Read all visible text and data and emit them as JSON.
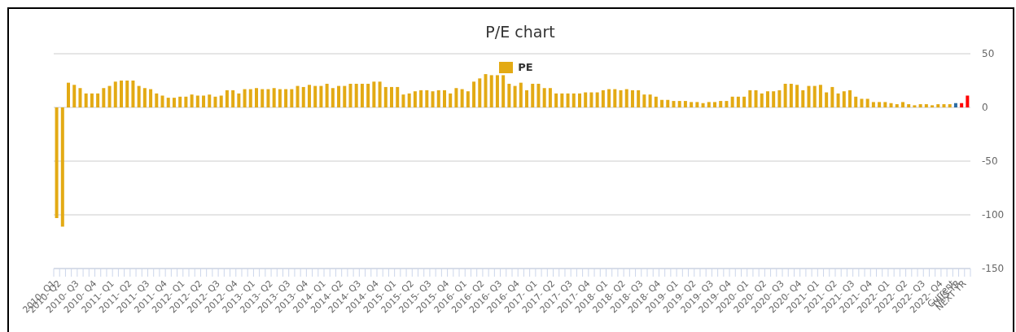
{
  "chart_data": {
    "type": "bar",
    "title": "P/E chart",
    "categories": [
      "2010- Q1",
      "2010- Q2",
      null,
      null,
      "2010- Q3",
      null,
      null,
      "2010- Q4",
      null,
      null,
      "2011- Q1",
      null,
      null,
      "2011- Q2",
      null,
      null,
      "2011- Q3",
      null,
      null,
      "2011- Q4",
      null,
      null,
      "2012- Q1",
      null,
      null,
      "2012- Q2",
      null,
      null,
      "2012- Q3",
      null,
      null,
      "2012- Q4",
      null,
      null,
      "2013- Q1",
      null,
      null,
      "2013- Q2",
      null,
      null,
      "2013- Q3",
      null,
      null,
      "2013- Q4",
      null,
      null,
      "2014- Q1",
      null,
      null,
      "2014- Q2",
      null,
      null,
      "2014- Q3",
      null,
      null,
      "2014- Q4",
      null,
      null,
      "2015- Q1",
      null,
      null,
      "2015- Q2",
      null,
      null,
      "2015- Q3",
      null,
      null,
      "2015- Q4",
      null,
      null,
      "2016- Q1",
      null,
      null,
      "2016- Q2",
      null,
      null,
      "2016- Q3",
      null,
      null,
      "2016- Q4",
      null,
      null,
      "2017- Q1",
      null,
      null,
      "2017- Q2",
      null,
      null,
      "2017- Q3",
      null,
      null,
      "2017- Q4",
      null,
      null,
      "2018- Q1",
      null,
      null,
      "2018- Q2",
      null,
      null,
      "2018- Q3",
      null,
      null,
      "2018- Q4",
      null,
      null,
      "2019- Q1",
      null,
      null,
      "2019- Q2",
      null,
      null,
      "2019- Q3",
      null,
      null,
      "2019- Q4",
      null,
      null,
      "2020- Q1",
      null,
      null,
      "2020- Q2",
      null,
      null,
      "2020- Q3",
      null,
      null,
      "2020- Q4",
      null,
      null,
      "2021- Q1",
      null,
      null,
      "2021- Q2",
      null,
      null,
      "2021- Q3",
      null,
      null,
      "2021- Q4",
      null,
      null,
      "2022- Q1",
      null,
      null,
      "2022- Q2",
      null,
      null,
      "2022- Q3",
      null,
      null,
      "2022- Q4",
      null,
      "Current",
      "THIS YR",
      "NEXT YR"
    ],
    "series": [
      {
        "name": "PE",
        "color": "#e3aa14",
        "colors": [
          "#e3aa14",
          "#e3aa14",
          "#e3aa14",
          "#e3aa14",
          "#e3aa14",
          "#e3aa14",
          "#e3aa14",
          "#e3aa14",
          "#e3aa14",
          "#e3aa14",
          "#e3aa14",
          "#e3aa14",
          "#e3aa14",
          "#e3aa14",
          "#e3aa14",
          "#e3aa14",
          "#e3aa14",
          "#e3aa14",
          "#e3aa14",
          "#e3aa14",
          "#e3aa14",
          "#e3aa14",
          "#e3aa14",
          "#e3aa14",
          "#e3aa14",
          "#e3aa14",
          "#e3aa14",
          "#e3aa14",
          "#e3aa14",
          "#e3aa14",
          "#e3aa14",
          "#e3aa14",
          "#e3aa14",
          "#e3aa14",
          "#e3aa14",
          "#e3aa14",
          "#e3aa14",
          "#e3aa14",
          "#e3aa14",
          "#e3aa14",
          "#e3aa14",
          "#e3aa14",
          "#e3aa14",
          "#e3aa14",
          "#e3aa14",
          "#e3aa14",
          "#e3aa14",
          "#e3aa14",
          "#e3aa14",
          "#e3aa14",
          "#e3aa14",
          "#e3aa14",
          "#e3aa14",
          "#e3aa14",
          "#e3aa14",
          "#e3aa14",
          "#e3aa14",
          "#e3aa14",
          "#e3aa14",
          "#e3aa14",
          "#e3aa14",
          "#e3aa14",
          "#e3aa14",
          "#e3aa14",
          "#e3aa14",
          "#e3aa14",
          "#e3aa14",
          "#e3aa14",
          "#e3aa14",
          "#e3aa14",
          "#e3aa14",
          "#e3aa14",
          "#e3aa14",
          "#e3aa14",
          "#e3aa14",
          "#e3aa14",
          "#e3aa14",
          "#e3aa14",
          "#e3aa14",
          "#e3aa14",
          "#e3aa14",
          "#e3aa14",
          "#e3aa14",
          "#e3aa14",
          "#e3aa14",
          "#e3aa14",
          "#e3aa14",
          "#e3aa14",
          "#e3aa14",
          "#e3aa14",
          "#e3aa14",
          "#e3aa14",
          "#e3aa14",
          "#e3aa14",
          "#e3aa14",
          "#e3aa14",
          "#e3aa14",
          "#e3aa14",
          "#e3aa14",
          "#e3aa14",
          "#e3aa14",
          "#e3aa14",
          "#e3aa14",
          "#e3aa14",
          "#e3aa14",
          "#e3aa14",
          "#e3aa14",
          "#e3aa14",
          "#e3aa14",
          "#e3aa14",
          "#e3aa14",
          "#e3aa14",
          "#e3aa14",
          "#e3aa14",
          "#e3aa14",
          "#e3aa14",
          "#e3aa14",
          "#e3aa14",
          "#e3aa14",
          "#e3aa14",
          "#e3aa14",
          "#e3aa14",
          "#e3aa14",
          "#e3aa14",
          "#e3aa14",
          "#e3aa14",
          "#e3aa14",
          "#e3aa14",
          "#e3aa14",
          "#e3aa14",
          "#e3aa14",
          "#e3aa14",
          "#e3aa14",
          "#e3aa14",
          "#e3aa14",
          "#e3aa14",
          "#e3aa14",
          "#e3aa14",
          "#e3aa14",
          "#e3aa14",
          "#e3aa14",
          "#e3aa14",
          "#e3aa14",
          "#e3aa14",
          "#e3aa14",
          "#e3aa14",
          "#e3aa14",
          "#e3aa14",
          "#e3aa14",
          "#e3aa14",
          "#e3aa14",
          "#e3aa14",
          "#e3aa14",
          "#2b6ca3",
          "#ff0000",
          "#ff0000"
        ],
        "values": [
          -103,
          -111,
          23,
          21,
          18,
          13,
          13,
          13,
          18,
          20,
          24,
          25,
          25,
          25,
          20,
          18,
          17,
          13,
          11,
          9,
          9,
          10,
          10,
          12,
          11,
          11,
          12,
          10,
          11,
          16,
          16,
          13,
          17,
          17,
          18,
          17,
          17,
          18,
          17,
          17,
          17,
          20,
          19,
          21,
          20,
          20,
          22,
          18,
          20,
          20,
          22,
          22,
          22,
          22,
          24,
          24,
          19,
          19,
          19,
          12,
          13,
          15,
          16,
          16,
          15,
          16,
          16,
          13,
          18,
          17,
          15,
          24,
          27,
          31,
          30,
          30,
          30,
          22,
          20,
          23,
          16,
          22,
          22,
          18,
          18,
          13,
          13,
          13,
          13,
          13,
          14,
          14,
          14,
          16,
          17,
          17,
          16,
          17,
          16,
          16,
          12,
          12,
          10,
          7,
          7,
          6,
          6,
          6,
          5,
          5,
          4,
          5,
          5,
          6,
          6,
          10,
          10,
          10,
          16,
          16,
          13,
          15,
          15,
          16,
          22,
          22,
          21,
          16,
          20,
          20,
          21,
          14,
          19,
          13,
          15,
          16,
          10,
          8,
          8,
          5,
          5,
          5,
          4,
          3,
          5,
          3,
          2,
          3,
          3,
          2,
          3,
          3,
          3,
          4,
          4,
          11
        ]
      }
    ],
    "ylim": [
      -150,
      50
    ],
    "yticks": [
      -150,
      -100,
      -50,
      0,
      50
    ],
    "grid": "y",
    "legend": "top"
  }
}
